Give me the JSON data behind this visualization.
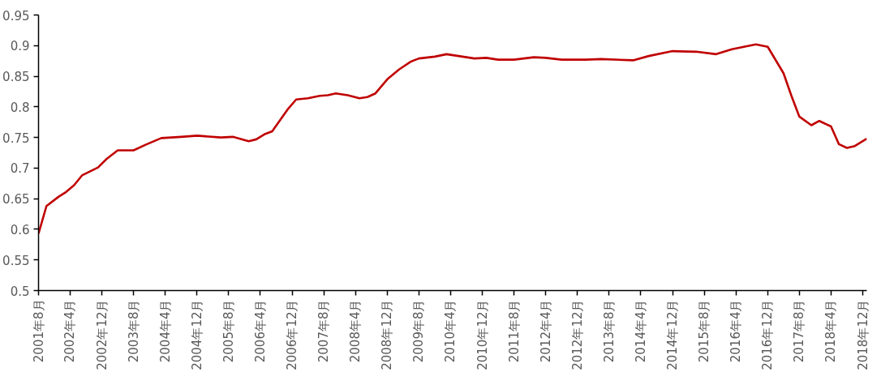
{
  "chart_data": {
    "type": "line",
    "x": [
      "2001-08",
      "2001-10",
      "2002-01",
      "2002-03",
      "2002-05",
      "2002-07",
      "2002-11",
      "2003-01",
      "2003-04",
      "2003-08",
      "2003-11",
      "2004-03",
      "2004-08",
      "2004-12",
      "2005-06",
      "2005-09",
      "2006-01",
      "2006-03",
      "2006-05",
      "2006-07",
      "2006-11",
      "2007-01",
      "2007-04",
      "2007-07",
      "2007-09",
      "2007-11",
      "2008-02",
      "2008-05",
      "2008-07",
      "2008-09",
      "2008-12",
      "2009-03",
      "2009-06",
      "2009-08",
      "2009-12",
      "2010-03",
      "2010-06",
      "2010-10",
      "2011-01",
      "2011-04",
      "2011-08",
      "2012-01",
      "2012-04",
      "2012-08",
      "2013-02",
      "2013-06",
      "2014-02",
      "2014-06",
      "2014-12",
      "2015-06",
      "2015-11",
      "2016-03",
      "2016-09",
      "2016-12",
      "2017-04",
      "2017-06",
      "2017-08",
      "2017-11",
      "2018-01",
      "2018-04",
      "2018-06",
      "2018-08",
      "2018-10",
      "2019-01"
    ],
    "series": [
      {
        "color": "#c00000",
        "values": [
          0.593,
          0.638,
          0.653,
          0.661,
          0.672,
          0.688,
          0.701,
          0.714,
          0.729,
          0.729,
          0.738,
          0.749,
          0.751,
          0.753,
          0.75,
          0.751,
          0.744,
          0.747,
          0.755,
          0.76,
          0.797,
          0.812,
          0.814,
          0.818,
          0.819,
          0.822,
          0.819,
          0.814,
          0.816,
          0.822,
          0.845,
          0.861,
          0.874,
          0.879,
          0.882,
          0.886,
          0.883,
          0.879,
          0.88,
          0.877,
          0.877,
          0.881,
          0.88,
          0.877,
          0.877,
          0.878,
          0.876,
          0.883,
          0.891,
          0.89,
          0.886,
          0.894,
          0.902,
          0.898,
          0.855,
          0.818,
          0.784,
          0.77,
          0.777,
          0.768,
          0.739,
          0.733,
          0.736,
          0.748
        ]
      }
    ],
    "xlim": [
      "2001-08",
      "2019-01"
    ],
    "xticks": [
      {
        "value": "2001-08",
        "label": "2001年8月"
      },
      {
        "value": "2002-04",
        "label": "2002年4月"
      },
      {
        "value": "2002-12",
        "label": "2002年12月"
      },
      {
        "value": "2003-08",
        "label": "2003年8月"
      },
      {
        "value": "2004-04",
        "label": "2004年4月"
      },
      {
        "value": "2004-12",
        "label": "2004年12月"
      },
      {
        "value": "2005-08",
        "label": "2005年8月"
      },
      {
        "value": "2006-04",
        "label": "2006年4月"
      },
      {
        "value": "2006-12",
        "label": "2006年12月"
      },
      {
        "value": "2007-08",
        "label": "2007年8月"
      },
      {
        "value": "2008-04",
        "label": "2008年4月"
      },
      {
        "value": "2008-12",
        "label": "2008年12月"
      },
      {
        "value": "2009-08",
        "label": "2009年8月"
      },
      {
        "value": "2010-04",
        "label": "2010年4月"
      },
      {
        "value": "2010-12",
        "label": "2010年12月"
      },
      {
        "value": "2011-08",
        "label": "2011年8月"
      },
      {
        "value": "2012-04",
        "label": "2012年4月"
      },
      {
        "value": "2012-12",
        "label": "2012年12月"
      },
      {
        "value": "2013-08",
        "label": "2013年8月"
      },
      {
        "value": "2014-04",
        "label": "2014年4月"
      },
      {
        "value": "2014-12",
        "label": "2014年12月"
      },
      {
        "value": "2015-08",
        "label": "2015年8月"
      },
      {
        "value": "2016-04",
        "label": "2016年4月"
      },
      {
        "value": "2016-12",
        "label": "2016年12月"
      },
      {
        "value": "2017-08",
        "label": "2017年8月"
      },
      {
        "value": "2018-04",
        "label": "2018年4月"
      },
      {
        "value": "2018-12",
        "label": "2018年12月"
      }
    ],
    "ylim": [
      0.5,
      0.95
    ],
    "yticks": [
      0.5,
      0.55,
      0.6,
      0.65,
      0.7,
      0.75,
      0.8,
      0.85,
      0.9,
      0.95
    ]
  }
}
